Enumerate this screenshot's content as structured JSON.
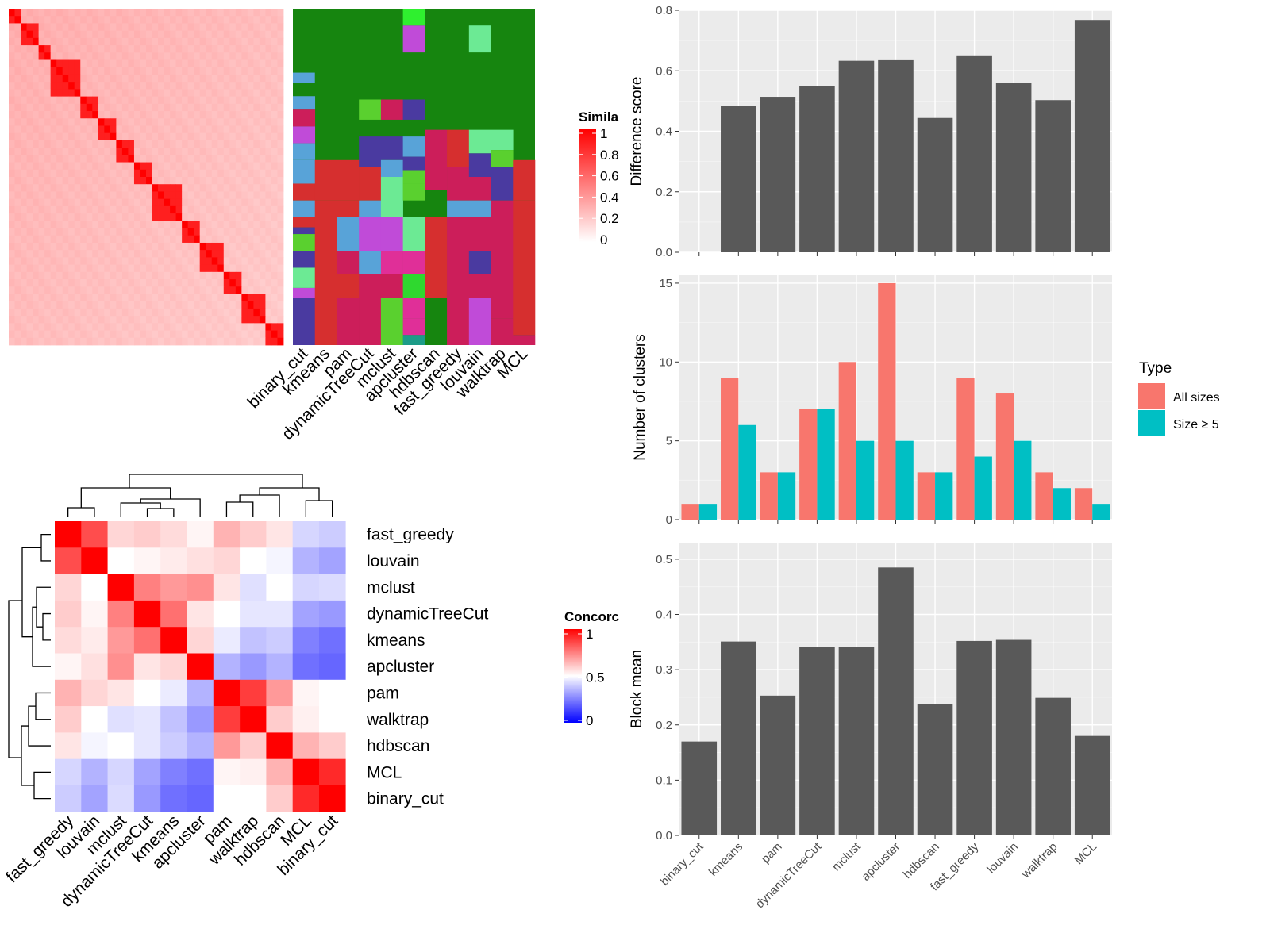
{
  "colors": {
    "panel_bg": "#ebebeb",
    "grid": "#ffffff",
    "bar_dark": "#595959",
    "all_sizes": "#f8766d",
    "size_ge5": "#00bfc4",
    "sim_high": "#ff0000",
    "sim_low": "#ffffff",
    "conc_low": "#0000ff",
    "green_bg": "#16850f"
  },
  "methods": [
    "binary_cut",
    "kmeans",
    "pam",
    "dynamicTreeCut",
    "mclust",
    "apcluster",
    "hdbscan",
    "fast_greedy",
    "louvain",
    "walktrap",
    "MCL"
  ],
  "concordance_order": [
    "fast_greedy",
    "louvain",
    "mclust",
    "dynamicTreeCut",
    "kmeans",
    "apcluster",
    "pam",
    "walktrap",
    "hdbscan",
    "MCL",
    "binary_cut"
  ],
  "similarity_legend": {
    "title": "Simila",
    "ticks": [
      "1",
      "0.8",
      "0.6",
      "0.4",
      "0.2",
      "0"
    ]
  },
  "concordance_legend": {
    "title": "Concorc",
    "ticks": [
      "1",
      "0.5",
      "0"
    ]
  },
  "chart_data": [
    {
      "type": "heatmap",
      "name": "similarity",
      "n": 46,
      "blocks": [
        [
          0,
          1
        ],
        [
          2,
          4
        ],
        [
          5,
          6
        ],
        [
          7,
          11
        ],
        [
          12,
          14
        ],
        [
          15,
          17
        ],
        [
          18,
          20
        ],
        [
          21,
          23
        ],
        [
          24,
          28
        ],
        [
          29,
          31
        ],
        [
          32,
          35
        ],
        [
          36,
          38
        ],
        [
          39,
          42
        ],
        [
          43,
          45
        ]
      ],
      "legend_title": "Simila",
      "legend_range": [
        0,
        1
      ]
    },
    {
      "type": "heatmap",
      "name": "cluster_membership",
      "columns": [
        "binary_cut",
        "kmeans",
        "pam",
        "dynamicTreeCut",
        "mclust",
        "apcluster",
        "hdbscan",
        "fast_greedy",
        "louvain",
        "walktrap",
        "MCL"
      ]
    },
    {
      "type": "heatmap",
      "name": "concordance",
      "rows": [
        "fast_greedy",
        "louvain",
        "mclust",
        "dynamicTreeCut",
        "kmeans",
        "apcluster",
        "pam",
        "walktrap",
        "hdbscan",
        "MCL",
        "binary_cut"
      ],
      "values": [
        [
          1.0,
          0.85,
          0.58,
          0.6,
          0.57,
          0.52,
          0.65,
          0.6,
          0.55,
          0.42,
          0.4
        ],
        [
          0.85,
          1.0,
          0.5,
          0.52,
          0.54,
          0.56,
          0.58,
          0.5,
          0.48,
          0.35,
          0.32
        ],
        [
          0.58,
          0.5,
          1.0,
          0.75,
          0.7,
          0.72,
          0.55,
          0.44,
          0.5,
          0.42,
          0.43
        ],
        [
          0.6,
          0.52,
          0.75,
          1.0,
          0.78,
          0.55,
          0.5,
          0.45,
          0.45,
          0.32,
          0.3
        ],
        [
          0.57,
          0.54,
          0.7,
          0.78,
          1.0,
          0.58,
          0.46,
          0.38,
          0.4,
          0.25,
          0.22
        ],
        [
          0.52,
          0.56,
          0.72,
          0.55,
          0.58,
          1.0,
          0.35,
          0.3,
          0.35,
          0.22,
          0.2
        ],
        [
          0.65,
          0.58,
          0.55,
          0.5,
          0.46,
          0.35,
          1.0,
          0.88,
          0.7,
          0.52,
          0.5
        ],
        [
          0.6,
          0.5,
          0.44,
          0.45,
          0.38,
          0.3,
          0.88,
          1.0,
          0.6,
          0.53,
          0.5
        ],
        [
          0.55,
          0.48,
          0.5,
          0.45,
          0.4,
          0.35,
          0.7,
          0.6,
          1.0,
          0.65,
          0.6
        ],
        [
          0.42,
          0.35,
          0.42,
          0.32,
          0.25,
          0.22,
          0.52,
          0.53,
          0.65,
          1.0,
          0.92
        ],
        [
          0.4,
          0.32,
          0.43,
          0.3,
          0.22,
          0.2,
          0.5,
          0.5,
          0.6,
          0.92,
          1.0
        ]
      ],
      "legend_title": "Concorc",
      "legend_range": [
        0,
        1
      ]
    },
    {
      "type": "bar",
      "name": "difference",
      "categories": [
        "binary_cut",
        "kmeans",
        "pam",
        "dynamicTreeCut",
        "mclust",
        "apcluster",
        "hdbscan",
        "fast_greedy",
        "louvain",
        "walktrap",
        "MCL"
      ],
      "values": [
        0,
        0.483,
        0.514,
        0.549,
        0.633,
        0.635,
        0.444,
        0.651,
        0.56,
        0.503,
        0.768
      ],
      "ylabel": "Difference score",
      "ylim": [
        0,
        0.8
      ],
      "yticks": [
        "0.0",
        "0.2",
        "0.4",
        "0.6",
        "0.8"
      ],
      "grid": true
    },
    {
      "type": "bar",
      "name": "clusters",
      "categories": [
        "binary_cut",
        "kmeans",
        "pam",
        "dynamicTreeCut",
        "mclust",
        "apcluster",
        "hdbscan",
        "fast_greedy",
        "louvain",
        "walktrap",
        "MCL"
      ],
      "series": [
        {
          "name": "All sizes",
          "values": [
            1,
            9,
            3,
            7,
            10,
            15,
            3,
            9,
            8,
            3,
            2
          ]
        },
        {
          "name": "Size ≥ 5",
          "values": [
            1,
            6,
            3,
            7,
            5,
            5,
            3,
            4,
            5,
            2,
            1
          ]
        }
      ],
      "ylabel": "Number of clusters",
      "ylim": [
        0,
        15.5
      ],
      "yticks": [
        "0",
        "5",
        "10",
        "15"
      ],
      "legend": {
        "title": "Type",
        "position": "right"
      },
      "grid": true
    },
    {
      "type": "bar",
      "name": "block_mean",
      "categories": [
        "binary_cut",
        "kmeans",
        "pam",
        "dynamicTreeCut",
        "mclust",
        "apcluster",
        "hdbscan",
        "fast_greedy",
        "louvain",
        "walktrap",
        "MCL"
      ],
      "values": [
        0.17,
        0.351,
        0.253,
        0.341,
        0.341,
        0.485,
        0.237,
        0.352,
        0.354,
        0.249,
        0.18
      ],
      "ylabel": "Block mean",
      "ylim": [
        0,
        0.5
      ],
      "yticks": [
        "0.0",
        "0.1",
        "0.2",
        "0.3",
        "0.4",
        "0.5"
      ],
      "grid": true
    }
  ]
}
